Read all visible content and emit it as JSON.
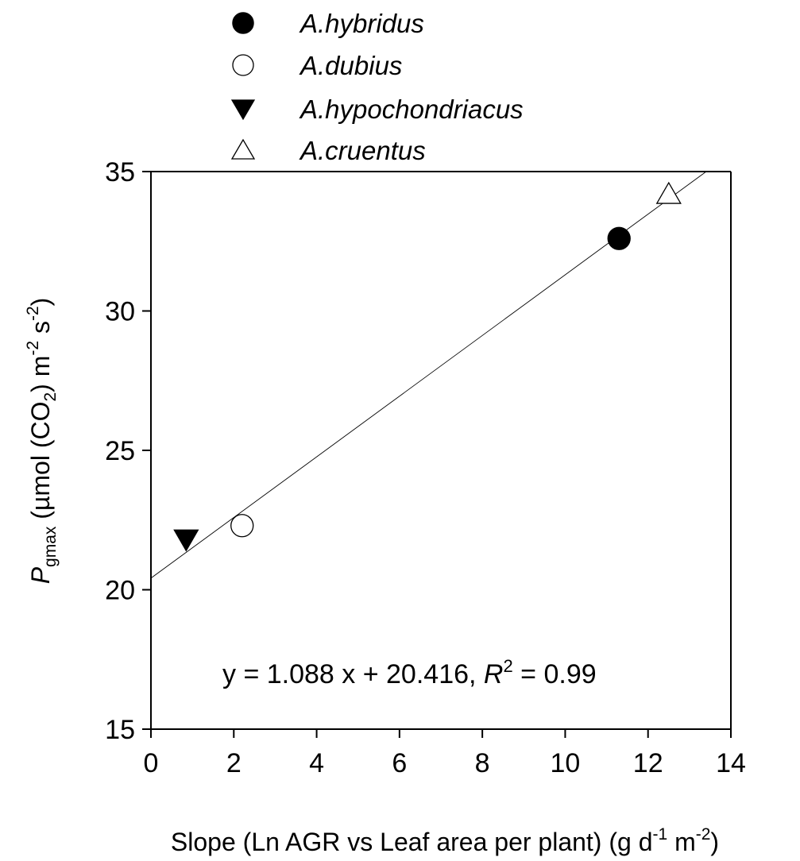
{
  "chart_data": {
    "type": "scatter",
    "x_axis": {
      "label_parts": [
        "Slope (Ln AGR vs Leaf area per plant) (g d",
        "-1",
        " m",
        "-2",
        ")"
      ],
      "range": [
        0,
        14
      ],
      "ticks": [
        0,
        2,
        4,
        6,
        8,
        10,
        12,
        14
      ]
    },
    "y_axis": {
      "label_parts": [
        "P",
        "gmax",
        " (µmol (CO",
        "2",
        ") m",
        "-2",
        " s",
        "-2",
        ")"
      ],
      "range": [
        15,
        35
      ],
      "ticks": [
        15,
        20,
        25,
        30,
        35
      ]
    },
    "series": [
      {
        "name": "A.hybridus",
        "marker": "circle",
        "filled": true,
        "x": 11.3,
        "y": 32.6
      },
      {
        "name": "A.dubius",
        "marker": "circle",
        "filled": false,
        "x": 2.2,
        "y": 22.3
      },
      {
        "name": "A.hypochondriacus",
        "marker": "triangle-down",
        "filled": true,
        "x": 0.85,
        "y": 21.8
      },
      {
        "name": "A.cruentus",
        "marker": "triangle-up",
        "filled": false,
        "x": 12.5,
        "y": 34.2
      }
    ],
    "regression": {
      "slope": 1.088,
      "intercept": 20.416,
      "equation_parts": [
        "y = 1.088 x + 20.416, ",
        "R",
        "2",
        " = 0.99"
      ]
    },
    "legend_position": "top",
    "grid": false
  }
}
